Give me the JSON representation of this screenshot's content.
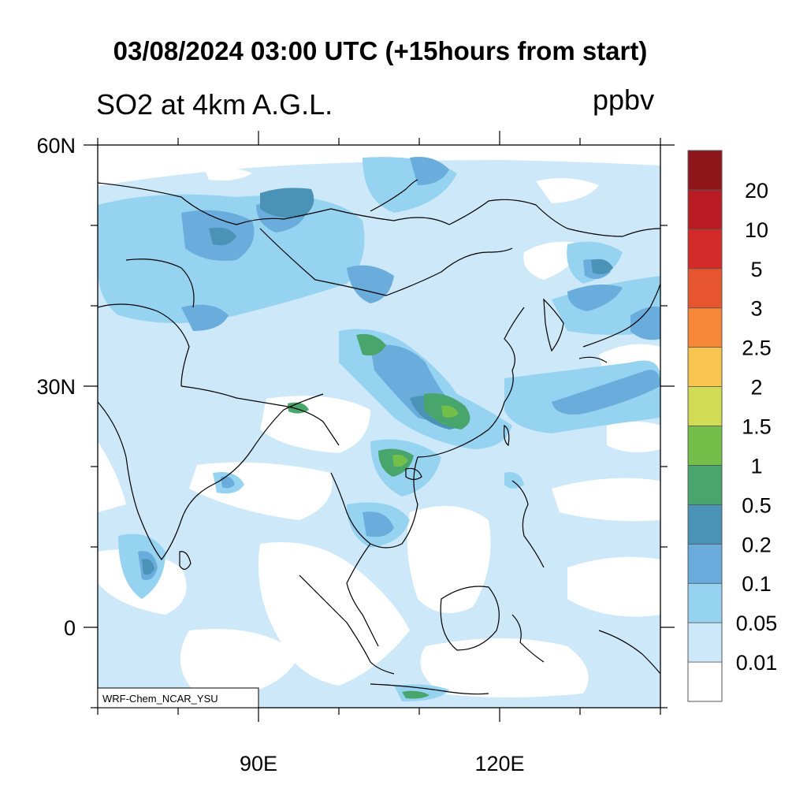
{
  "header": {
    "title": "03/08/2024 03:00 UTC (+15hours from start)",
    "field_label": "SO2 at 4km A.G.L.",
    "units": "ppbv"
  },
  "map": {
    "lat_ticks": [
      {
        "value": 60,
        "label": "60N"
      },
      {
        "value": 30,
        "label": "30N"
      },
      {
        "value": 0,
        "label": "0"
      }
    ],
    "lon_ticks": [
      {
        "value": 90,
        "label": "90E"
      },
      {
        "value": 120,
        "label": "120E"
      }
    ],
    "lon_range": [
      70,
      140
    ],
    "lat_range": [
      -10,
      60
    ],
    "background_fill": "#cde9f9",
    "model_label": "WRF-Chem_NCAR_YSU"
  },
  "colorbar": {
    "colors": [
      "#ffffff",
      "#cde9f9",
      "#95d3f1",
      "#6aaddd",
      "#4a93b6",
      "#48a56c",
      "#74bf4a",
      "#d1db55",
      "#f9c54f",
      "#f58737",
      "#e7552f",
      "#d52a2a",
      "#b81c22",
      "#8e1519"
    ],
    "labels": [
      "0.01",
      "0.05",
      "0.1",
      "0.2",
      "0.5",
      "1",
      "1.5",
      "2",
      "2.5",
      "3",
      "5",
      "10",
      "20"
    ]
  }
}
